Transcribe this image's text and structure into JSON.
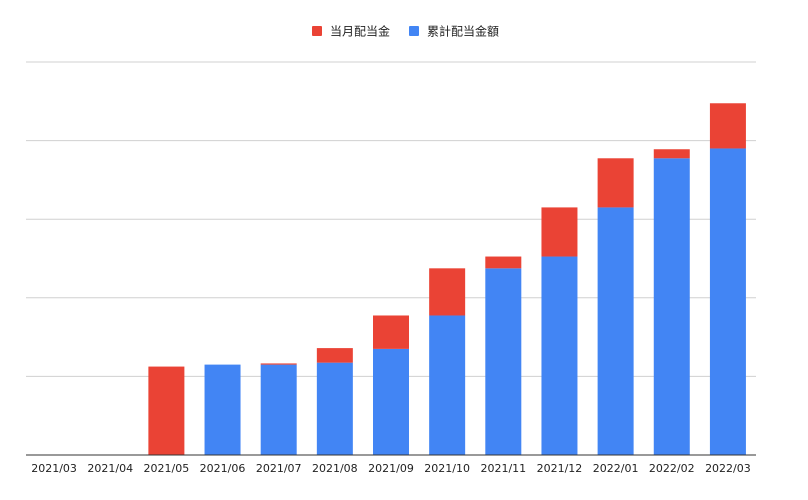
{
  "chart_data": {
    "type": "bar",
    "stacked": true,
    "categories": [
      "2021/03",
      "2021/04",
      "2021/05",
      "2021/06",
      "2021/07",
      "2021/08",
      "2021/09",
      "2021/10",
      "2021/11",
      "2021/12",
      "2022/01",
      "2022/02",
      "2022/03"
    ],
    "series": [
      {
        "name": "累計配当金額",
        "color": "#4285f4",
        "values": [
          0,
          0,
          0,
          23,
          23,
          23.5,
          27,
          35.5,
          47.5,
          50.5,
          63,
          75.5,
          78
        ]
      },
      {
        "name": "当月配当金",
        "color": "#ea4335",
        "values": [
          0,
          0,
          22.5,
          0,
          0.3,
          3.7,
          8.5,
          12,
          3,
          12.5,
          12.5,
          2.3,
          11.5
        ]
      }
    ],
    "legend_order": [
      "当月配当金",
      "累計配当金額"
    ],
    "legend_position": "top-center",
    "ylim": [
      0,
      100
    ],
    "y_gridlines": [
      0,
      20,
      40,
      60,
      80,
      100
    ],
    "y_tick_labels_visible": false,
    "grid": true
  }
}
